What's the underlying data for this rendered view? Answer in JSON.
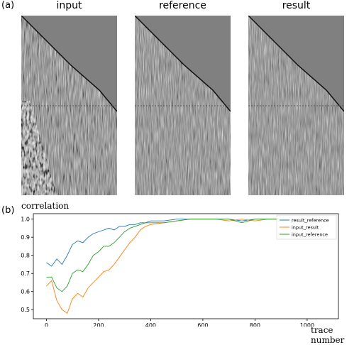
{
  "panel_a_label": "(a)",
  "panel_b_label": "(b)",
  "seismic_panels": [
    {
      "title": "input"
    },
    {
      "title": "reference"
    },
    {
      "title": "result"
    }
  ],
  "chart_data": {
    "type": "line",
    "xlabel": "trace number",
    "ylabel": "correlation",
    "xlim": [
      -50,
      1120
    ],
    "ylim": [
      0.45,
      1.03
    ],
    "x_ticks": [
      0,
      200,
      400,
      600,
      800,
      1000
    ],
    "y_ticks": [
      0.5,
      0.6,
      0.7,
      0.8,
      0.9,
      1.0
    ],
    "grid": false,
    "legend_position": "top-right",
    "series": [
      {
        "name": "result_reference",
        "color": "#1f77b4",
        "x": [
          0,
          20,
          40,
          60,
          80,
          100,
          120,
          140,
          160,
          180,
          200,
          220,
          240,
          260,
          280,
          300,
          320,
          340,
          360,
          380,
          400,
          450,
          500,
          550,
          600,
          650,
          700,
          750,
          800,
          850,
          900
        ],
        "y": [
          0.76,
          0.74,
          0.78,
          0.75,
          0.8,
          0.86,
          0.88,
          0.87,
          0.9,
          0.92,
          0.93,
          0.94,
          0.95,
          0.94,
          0.96,
          0.96,
          0.97,
          0.97,
          0.98,
          0.98,
          0.99,
          0.99,
          1.0,
          1.0,
          1.0,
          1.0,
          1.0,
          0.99,
          1.0,
          1.0,
          1.0
        ]
      },
      {
        "name": "input_result",
        "color": "#ff7f0e",
        "x": [
          0,
          20,
          40,
          60,
          80,
          100,
          120,
          140,
          160,
          180,
          200,
          220,
          240,
          260,
          280,
          300,
          320,
          340,
          360,
          380,
          400,
          450,
          500,
          550,
          600,
          650,
          700,
          750,
          800,
          850,
          900
        ],
        "y": [
          0.63,
          0.66,
          0.55,
          0.5,
          0.48,
          0.56,
          0.59,
          0.57,
          0.62,
          0.65,
          0.68,
          0.71,
          0.72,
          0.75,
          0.79,
          0.83,
          0.87,
          0.9,
          0.94,
          0.96,
          0.97,
          0.98,
          0.99,
          1.0,
          1.0,
          1.0,
          0.99,
          1.0,
          0.99,
          1.0,
          1.0
        ]
      },
      {
        "name": "input_reference",
        "color": "#2ca02c",
        "x": [
          0,
          20,
          40,
          60,
          80,
          100,
          120,
          140,
          160,
          180,
          200,
          220,
          240,
          260,
          280,
          300,
          320,
          340,
          360,
          380,
          400,
          450,
          500,
          550,
          600,
          650,
          700,
          750,
          800,
          850,
          900
        ],
        "y": [
          0.68,
          0.68,
          0.62,
          0.6,
          0.63,
          0.7,
          0.72,
          0.71,
          0.75,
          0.8,
          0.82,
          0.85,
          0.85,
          0.87,
          0.9,
          0.93,
          0.95,
          0.96,
          0.97,
          0.98,
          0.98,
          0.98,
          0.99,
          1.0,
          1.0,
          1.0,
          1.0,
          0.98,
          1.0,
          1.0,
          1.0
        ]
      }
    ]
  }
}
